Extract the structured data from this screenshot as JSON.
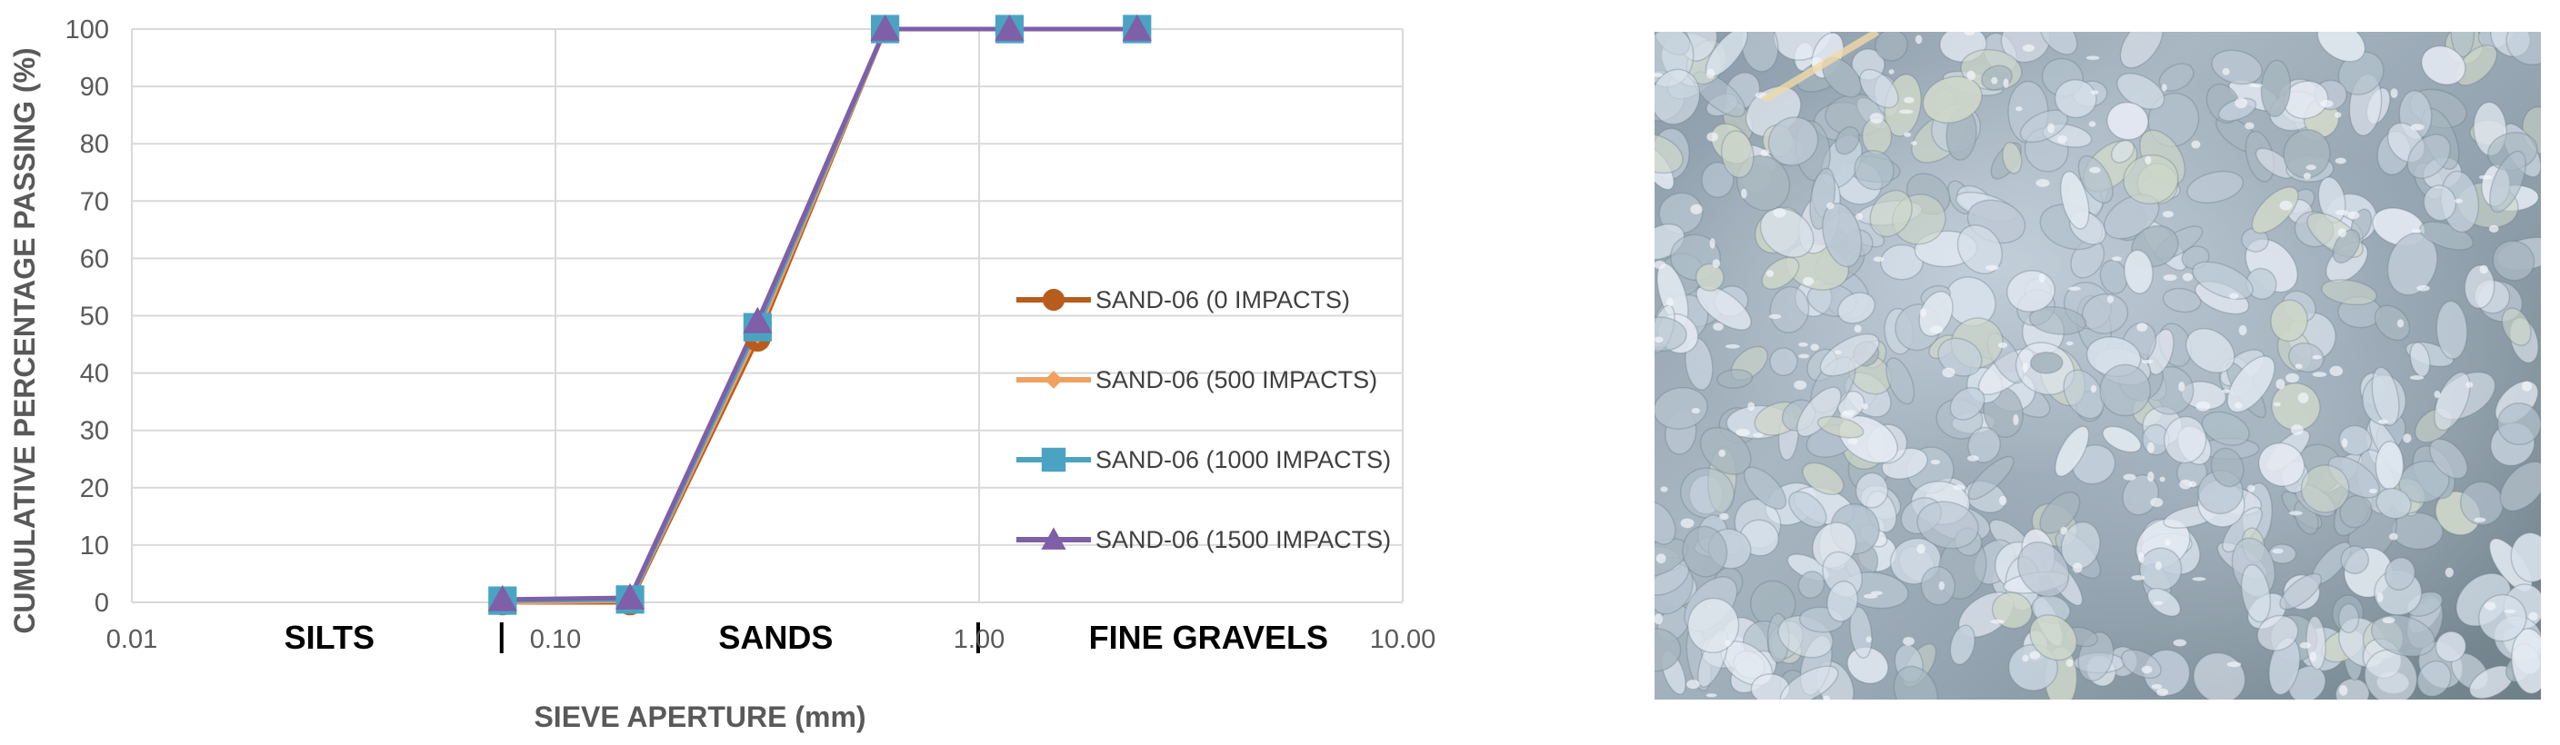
{
  "chart_data": {
    "type": "line",
    "x_scale": "log",
    "xlim": [
      0.01,
      10.0
    ],
    "ylim": [
      0,
      100
    ],
    "xlabel": "SIEVE APERTURE (mm)",
    "ylabel": "CUMULATIVE PERCENTAGE PASSING (%)",
    "x_ticks": [
      0.01,
      0.1,
      1.0,
      10.0
    ],
    "x_tick_labels": [
      "0.01",
      "0.10",
      "1.00",
      "10.00"
    ],
    "y_ticks": [
      0,
      10,
      20,
      30,
      40,
      50,
      60,
      70,
      80,
      90,
      100
    ],
    "y_tick_labels": [
      "0",
      "10",
      "20",
      "30",
      "40",
      "50",
      "60",
      "70",
      "80",
      "90",
      "100"
    ],
    "grid": true,
    "legend_position": "right",
    "regions": [
      {
        "label": "SILTS",
        "x_center": 0.03
      },
      {
        "label": "SANDS",
        "x_center": 0.3
      },
      {
        "label": "FINE GRAVELS",
        "x_center": 3.0
      }
    ],
    "region_boundaries": [
      0.075,
      1.0
    ],
    "x": [
      0.075,
      0.15,
      0.3,
      0.6,
      1.18,
      2.36
    ],
    "series": [
      {
        "name": "SAND-06 (0 IMPACTS)",
        "color": "#B85C1E",
        "marker": "circle",
        "values": [
          0,
          0,
          46,
          100,
          100,
          100
        ]
      },
      {
        "name": "SAND-06 (500 IMPACTS)",
        "color": "#F0A060",
        "marker": "diamond",
        "values": [
          0,
          0.3,
          47,
          100,
          100,
          100
        ]
      },
      {
        "name": "SAND-06 (1000 IMPACTS)",
        "color": "#4BA3C3",
        "marker": "square",
        "values": [
          0.3,
          0.5,
          48,
          100,
          100,
          100
        ]
      },
      {
        "name": "SAND-06 (1500 IMPACTS)",
        "color": "#7E5FA8",
        "marker": "triangle",
        "values": [
          0.5,
          0.8,
          49,
          100,
          100,
          100
        ]
      }
    ]
  },
  "photo": {
    "grain_color": "#c9d6e0",
    "background_color": "#7f8f9a"
  }
}
